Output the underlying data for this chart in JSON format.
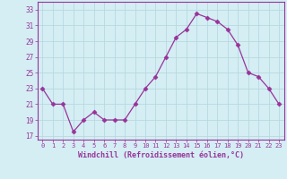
{
  "x": [
    0,
    1,
    2,
    3,
    4,
    5,
    6,
    7,
    8,
    9,
    10,
    11,
    12,
    13,
    14,
    15,
    16,
    17,
    18,
    19,
    20,
    21,
    22,
    23
  ],
  "y": [
    23.0,
    21.0,
    21.0,
    17.5,
    19.0,
    20.0,
    19.0,
    19.0,
    19.0,
    21.0,
    23.0,
    24.5,
    27.0,
    29.5,
    30.5,
    32.5,
    32.0,
    31.5,
    30.5,
    28.5,
    25.0,
    24.5,
    23.0,
    21.0
  ],
  "line_color": "#993399",
  "marker": "D",
  "marker_size": 2.5,
  "xlabel": "Windchill (Refroidissement éolien,°C)",
  "xlabel_color": "#993399",
  "ylabel_ticks": [
    17,
    19,
    21,
    23,
    25,
    27,
    29,
    31,
    33
  ],
  "xlim": [
    -0.5,
    23.5
  ],
  "ylim": [
    16.5,
    34.0
  ],
  "bg_color": "#d4eef4",
  "grid_color": "#b8d8e0",
  "tick_color": "#993399",
  "spine_color": "#993399"
}
